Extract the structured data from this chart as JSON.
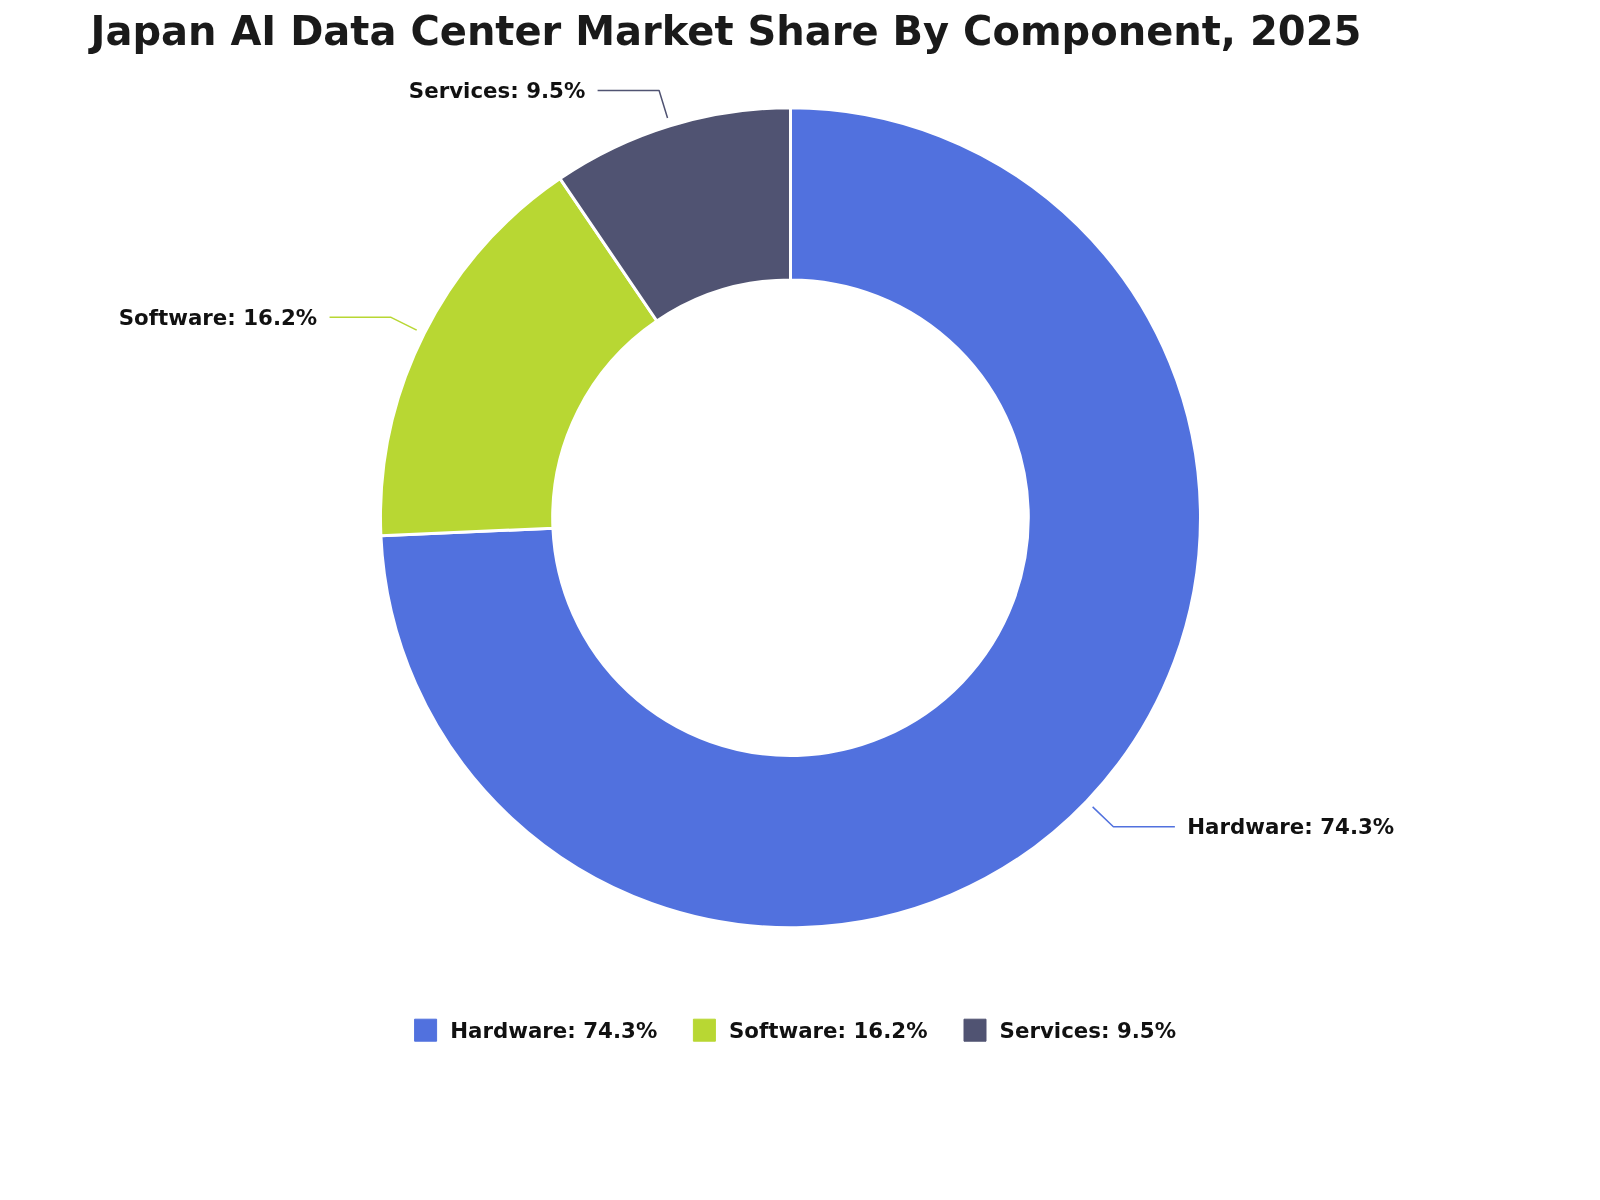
{
  "chart_data": {
    "type": "donut",
    "title": "Japan AI Data Center Market Share By Component, 2025",
    "categories": [
      "Hardware: 74.3%",
      "Software: 16.2%",
      "Services: 9.5%"
    ],
    "values": [
      74.3,
      16.2,
      9.5
    ],
    "colors": [
      "#5171de",
      "#b8d733",
      "#505372"
    ],
    "legend": "bottom"
  }
}
